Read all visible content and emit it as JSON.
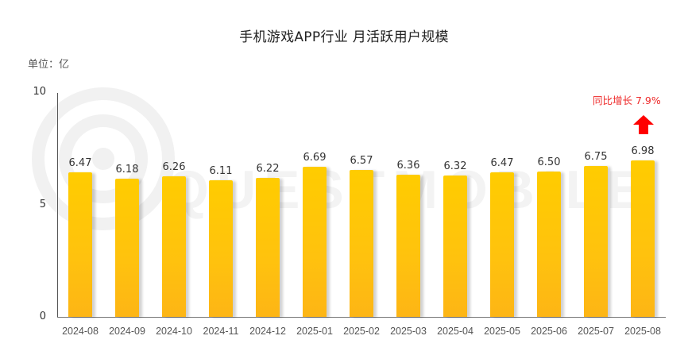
{
  "title": "手机游戏APP行业 月活跃用户规模",
  "unit_label": "单位：亿",
  "watermark": "QUESTMOBILE",
  "annotation": {
    "text": "同比增长 7.9%",
    "color": "#EE2A2A",
    "icon": "up-arrow-icon"
  },
  "colors": {
    "bar_top": "#FFCC00",
    "bar_bottom": "#FDB515",
    "axis": "#555555",
    "annotation": "#EE2A2A"
  },
  "y_ticks": [
    "10",
    "5",
    "0"
  ],
  "chart_data": {
    "type": "bar",
    "title": "手机游戏APP行业 月活跃用户规模",
    "xlabel": "",
    "ylabel": "单位：亿",
    "ylim": [
      0,
      10
    ],
    "yticks": [
      0,
      5,
      10
    ],
    "grid": false,
    "legend": null,
    "categories": [
      "2024-08",
      "2024-09",
      "2024-10",
      "2024-11",
      "2024-12",
      "2025-01",
      "2025-02",
      "2025-03",
      "2025-04",
      "2025-05",
      "2025-06",
      "2025-07",
      "2025-08"
    ],
    "values": [
      6.47,
      6.18,
      6.26,
      6.11,
      6.22,
      6.69,
      6.57,
      6.36,
      6.32,
      6.47,
      6.5,
      6.75,
      6.98
    ],
    "value_labels": [
      "6.47",
      "6.18",
      "6.26",
      "6.11",
      "6.22",
      "6.69",
      "6.57",
      "6.36",
      "6.32",
      "6.47",
      "6.50",
      "6.75",
      "6.98"
    ],
    "annotations": [
      {
        "target": "2025-08",
        "text": "同比增长 7.9%",
        "marker": "red up arrow"
      }
    ]
  }
}
